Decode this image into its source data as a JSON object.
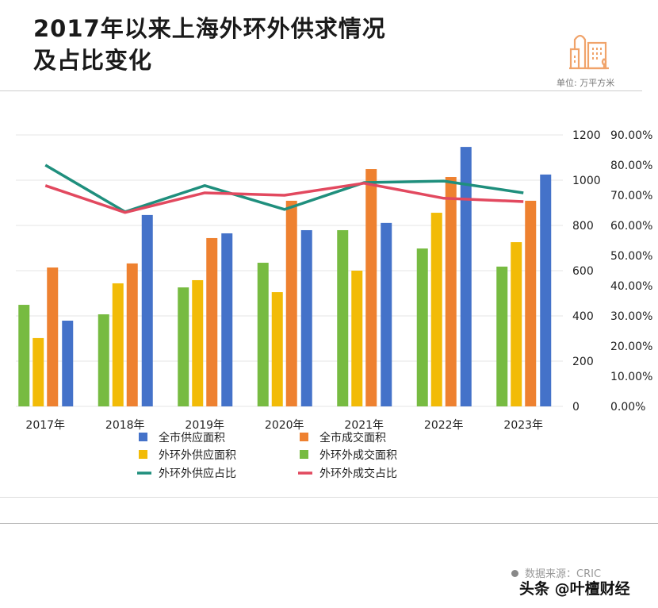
{
  "header": {
    "title_line1": "2017年以来上海外环外供求情况",
    "title_line2": "及占比变化",
    "unit": "单位: 万平方米",
    "icon": "city-buildings-icon",
    "icon_color": "#f0a36a"
  },
  "footer": {
    "source": "数据来源：CRIC",
    "watermark": "头条 @叶檀财经"
  },
  "chart_data": {
    "type": "bar",
    "title": "",
    "categories": [
      "2017年",
      "2018年",
      "2019年",
      "2020年",
      "2021年",
      "2022年",
      "2023年"
    ],
    "ylim": [
      0,
      1200
    ],
    "yticks": [
      "0",
      "200",
      "400",
      "600",
      "800",
      "1000",
      "1200"
    ],
    "y2lim": [
      0,
      90
    ],
    "y2ticks": [
      "0.00%",
      "10.00%",
      "20.00%",
      "30.00%",
      "40.00%",
      "50.00%",
      "60.00%",
      "70.00%",
      "80.00%",
      "90.00%"
    ],
    "grid": true,
    "legend_placement": "bottom",
    "series": [
      {
        "name": "外环外成交面积",
        "kind": "bar",
        "axis": "left",
        "color": "#77bb41",
        "values": [
          449,
          407,
          526,
          635,
          779,
          698,
          618
        ]
      },
      {
        "name": "外环外供应面积",
        "kind": "bar",
        "axis": "left",
        "color": "#f2bb07",
        "values": [
          302,
          544,
          558,
          505,
          600,
          856,
          726
        ]
      },
      {
        "name": "全市成交面积",
        "kind": "bar",
        "axis": "left",
        "color": "#ee8130",
        "values": [
          614,
          632,
          744,
          909,
          1049,
          1014,
          909
        ]
      },
      {
        "name": "全市供应面积",
        "kind": "bar",
        "axis": "left",
        "color": "#4472c9",
        "values": [
          379,
          846,
          765,
          779,
          811,
          1147,
          1025
        ]
      },
      {
        "name": "外环外供应占比",
        "kind": "line",
        "axis": "right",
        "color": "#1f8f7d",
        "values": [
          80.0,
          64.5,
          73.2,
          65.3,
          74.2,
          74.7,
          70.8
        ]
      },
      {
        "name": "外环外成交占比",
        "kind": "line",
        "axis": "right",
        "color": "#e2495f",
        "values": [
          73.2,
          64.3,
          70.8,
          70.0,
          74.0,
          69.0,
          67.9
        ]
      }
    ],
    "legend_order": [
      "全市供应面积",
      "全市成交面积",
      "外环外供应面积",
      "外环外成交面积",
      "外环外供应占比",
      "外环外成交占比"
    ]
  }
}
